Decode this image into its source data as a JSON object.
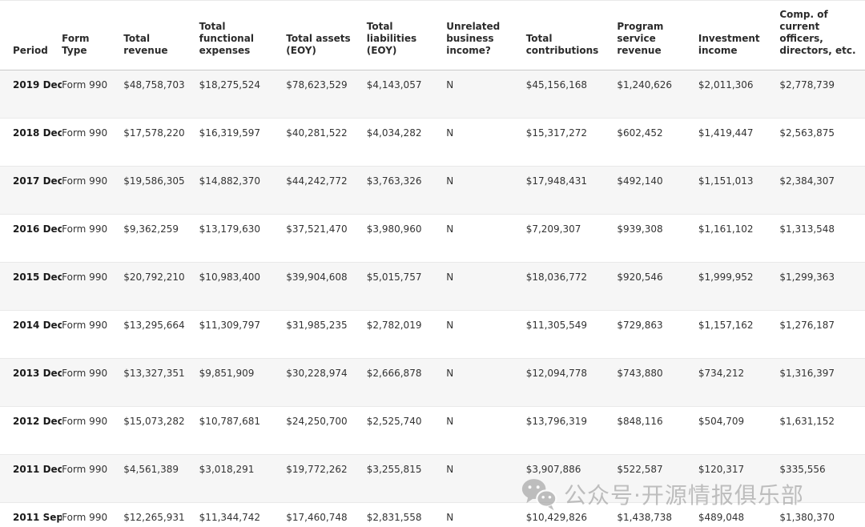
{
  "table": {
    "headers": [
      "Period",
      "Form Type",
      "Total revenue",
      "Total functional expenses",
      "Total assets (EOY)",
      "Total liabilities (EOY)",
      "Unrelated business income?",
      "Total contributions",
      "Program service revenue",
      "Investment income",
      "Comp. of current officers, directors, etc."
    ],
    "rows": [
      [
        "2019 Dec",
        "Form 990",
        "$48,758,703",
        "$18,275,524",
        "$78,623,529",
        "$4,143,057",
        "N",
        "$45,156,168",
        "$1,240,626",
        "$2,011,306",
        "$2,778,739"
      ],
      [
        "2018 Dec",
        "Form 990",
        "$17,578,220",
        "$16,319,597",
        "$40,281,522",
        "$4,034,282",
        "N",
        "$15,317,272",
        "$602,452",
        "$1,419,447",
        "$2,563,875"
      ],
      [
        "2017 Dec",
        "Form 990",
        "$19,586,305",
        "$14,882,370",
        "$44,242,772",
        "$3,763,326",
        "N",
        "$17,948,431",
        "$492,140",
        "$1,151,013",
        "$2,384,307"
      ],
      [
        "2016 Dec",
        "Form 990",
        "$9,362,259",
        "$13,179,630",
        "$37,521,470",
        "$3,980,960",
        "N",
        "$7,209,307",
        "$939,308",
        "$1,161,102",
        "$1,313,548"
      ],
      [
        "2015 Dec",
        "Form 990",
        "$20,792,210",
        "$10,983,400",
        "$39,904,608",
        "$5,015,757",
        "N",
        "$18,036,772",
        "$920,546",
        "$1,999,952",
        "$1,299,363"
      ],
      [
        "2014 Dec",
        "Form 990",
        "$13,295,664",
        "$11,309,797",
        "$31,985,235",
        "$2,782,019",
        "N",
        "$11,305,549",
        "$729,863",
        "$1,157,162",
        "$1,276,187"
      ],
      [
        "2013 Dec",
        "Form 990",
        "$13,327,351",
        "$9,851,909",
        "$30,228,974",
        "$2,666,878",
        "N",
        "$12,094,778",
        "$743,880",
        "$734,212",
        "$1,316,397"
      ],
      [
        "2012 Dec",
        "Form 990",
        "$15,073,282",
        "$10,787,681",
        "$24,250,700",
        "$2,525,740",
        "N",
        "$13,796,319",
        "$848,116",
        "$504,709",
        "$1,631,152"
      ],
      [
        "2011 Dec",
        "Form 990",
        "$4,561,389",
        "$3,018,291",
        "$19,772,262",
        "$3,255,815",
        "N",
        "$3,907,886",
        "$522,587",
        "$120,317",
        "$335,556"
      ],
      [
        "2011 Sep",
        "Form 990",
        "$12,265,931",
        "$11,344,742",
        "$17,460,748",
        "$2,831,558",
        "N",
        "$10,429,826",
        "$1,438,738",
        "$489,048",
        "$1,380,370"
      ]
    ]
  },
  "watermark": {
    "label": "公众号·开源情报俱乐部"
  },
  "colors": {
    "row_stripe": "#f6f6f6",
    "watermark_gray": "#9b9b9b"
  }
}
